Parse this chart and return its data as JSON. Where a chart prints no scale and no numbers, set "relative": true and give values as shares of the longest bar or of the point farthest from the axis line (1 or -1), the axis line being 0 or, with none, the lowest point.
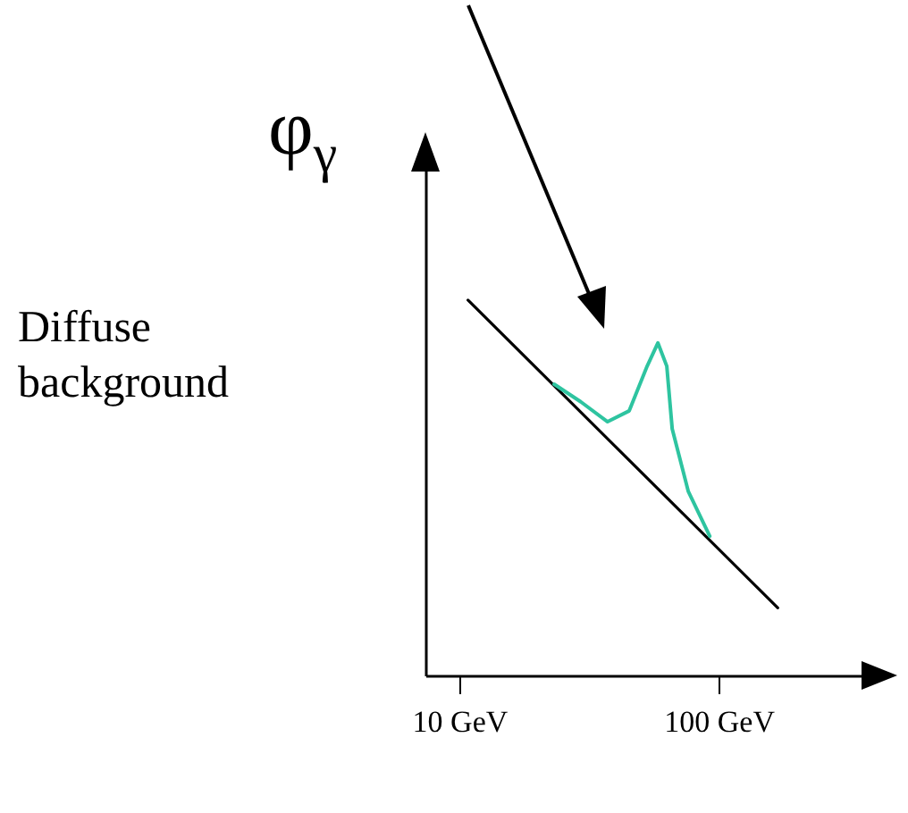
{
  "chart_data": {
    "type": "line",
    "ylabel": "φ$_{γ}$",
    "relative": true,
    "log": "x",
    "tick_labels": "x",
    "grid": false,
    "marker": "none",
    "annotations": [
      "Diffuse background"
    ],
    "xlim": [
      7.4,
      437
    ],
    "xticks": [
      {
        "value": 10,
        "label": "10 GeV"
      },
      {
        "value": 100,
        "label": "100 GeV"
      }
    ],
    "series": [
      {
        "color": "#000000",
        "x": [
          10.8,
          169
        ],
        "values": [
          1,
          0.18
        ]
      },
      {
        "color": "#2ec4a0",
        "x": [
          23.2,
          29.4,
          37.3,
          45.2,
          53.0,
          58.3,
          63.1,
          66.2,
          76.4,
          92.4
        ],
        "values": [
          0.776,
          0.729,
          0.676,
          0.705,
          0.824,
          0.886,
          0.824,
          0.657,
          0.49,
          0.371
        ]
      }
    ]
  }
}
